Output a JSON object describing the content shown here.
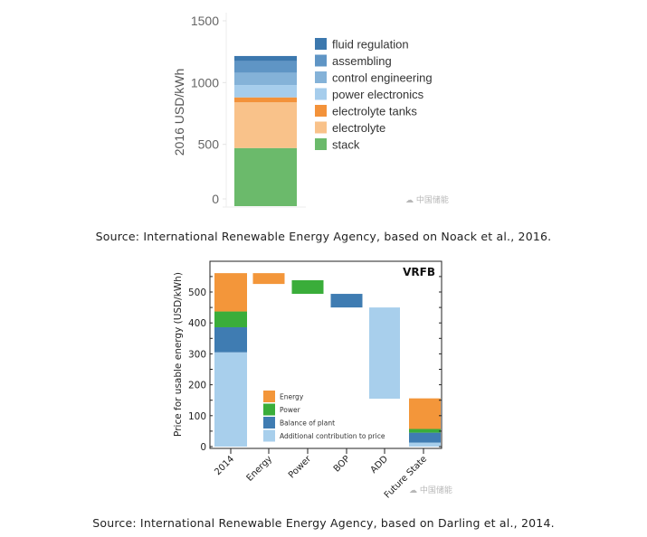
{
  "chart_data": [
    {
      "type": "bar",
      "stacked": true,
      "title": "",
      "xlabel": "",
      "ylabel": "2016 USD/kWh",
      "ylim": [
        0,
        1500
      ],
      "yticks": [
        0,
        500,
        1000,
        1500
      ],
      "grid": false,
      "legend_position": "right",
      "categories": [
        ""
      ],
      "series": [
        {
          "name": "stack",
          "values": [
            470
          ],
          "color": "#6bba6b"
        },
        {
          "name": "electrolyte",
          "values": [
            370
          ],
          "color": "#f9c28a"
        },
        {
          "name": "electrolyte tanks",
          "values": [
            40
          ],
          "color": "#f3923a"
        },
        {
          "name": "power electronics",
          "values": [
            100
          ],
          "color": "#a6cdec"
        },
        {
          "name": "control engineering",
          "values": [
            100
          ],
          "color": "#84b2d8"
        },
        {
          "name": "assembling",
          "values": [
            95
          ],
          "color": "#5f95c5"
        },
        {
          "name": "fluid regulation",
          "values": [
            40
          ],
          "color": "#3c78ae"
        }
      ],
      "legend_order": [
        "fluid regulation",
        "assembling",
        "control engineering",
        "power electronics",
        "electrolyte tanks",
        "electrolyte",
        "stack"
      ]
    },
    {
      "type": "bar",
      "subtype": "waterfall",
      "title": "VRFB",
      "xlabel": "",
      "ylabel": "Price for usable energy (USD/kWh)",
      "ylim": [
        0,
        570
      ],
      "yticks": [
        0,
        100,
        200,
        300,
        400,
        500
      ],
      "grid": false,
      "legend_position": "bottom-left",
      "categories": [
        "2014",
        "Energy",
        "Power",
        "BOP",
        "ADD",
        "Future State"
      ],
      "legend": [
        {
          "name": "Energy",
          "color": "#f3963a"
        },
        {
          "name": "Power",
          "color": "#3aad3a"
        },
        {
          "name": "Balance of plant",
          "color": "#3f7cb2"
        },
        {
          "name": "Additional contribution to price",
          "color": "#a8cfec"
        }
      ],
      "bars": [
        {
          "category": "2014",
          "segments": [
            {
              "component": "Additional contribution to price",
              "from": 0,
              "to": 305
            },
            {
              "component": "Balance of plant",
              "from": 305,
              "to": 386
            },
            {
              "component": "Power",
              "from": 386,
              "to": 437
            },
            {
              "component": "Energy",
              "from": 437,
              "to": 561
            }
          ]
        },
        {
          "category": "Energy",
          "segments": [
            {
              "component": "Energy",
              "from": 526,
              "to": 561
            }
          ]
        },
        {
          "category": "Power",
          "segments": [
            {
              "component": "Power",
              "from": 494,
              "to": 538
            }
          ]
        },
        {
          "category": "BOP",
          "segments": [
            {
              "component": "Balance of plant",
              "from": 450,
              "to": 494
            }
          ]
        },
        {
          "category": "ADD",
          "segments": [
            {
              "component": "Additional contribution to price",
              "from": 155,
              "to": 450
            }
          ]
        },
        {
          "category": "Future State",
          "segments": [
            {
              "component": "Additional contribution to price",
              "from": 0,
              "to": 13
            },
            {
              "component": "Balance of plant",
              "from": 13,
              "to": 45
            },
            {
              "component": "Power",
              "from": 45,
              "to": 57
            },
            {
              "component": "Energy",
              "from": 57,
              "to": 156
            }
          ]
        }
      ]
    }
  ],
  "captions": {
    "first": "Source: International Renewable Energy Agency, based on Noack et al., 2016.",
    "second": "Source: International Renewable Energy Agency, based on Darling et al., 2014."
  },
  "watermark": "中国储能"
}
